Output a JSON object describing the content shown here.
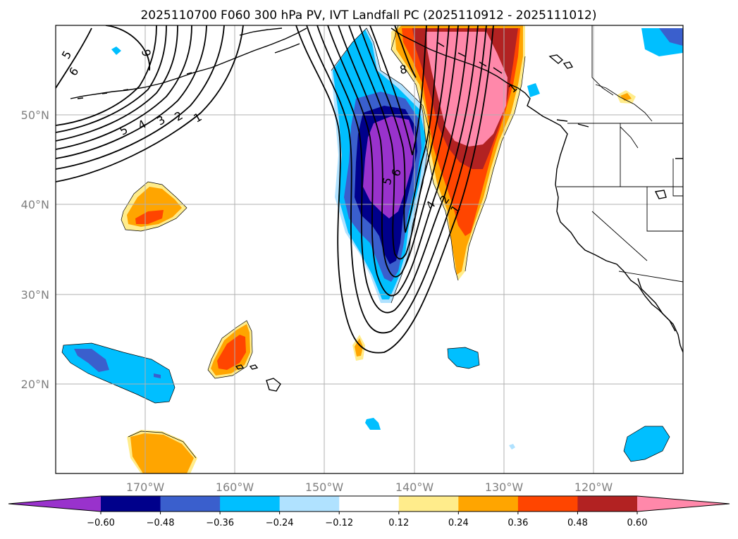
{
  "title": "2025110700 F060 300 hPa PV, IVT Landfall PC (2025110912 - 2025111012)",
  "axes": {
    "lat_ticks": [
      "50°N",
      "40°N",
      "30°N",
      "20°N"
    ],
    "lon_ticks": [
      "170°W",
      "160°W",
      "150°W",
      "140°W",
      "130°W",
      "120°W"
    ],
    "lat_range": [
      10,
      60
    ],
    "lon_range": [
      -180,
      -110
    ],
    "grid": true
  },
  "colorbar": {
    "tick_labels": [
      "−0.60",
      "−0.48",
      "−0.36",
      "−0.24",
      "−0.12",
      "0.12",
      "0.24",
      "0.36",
      "0.48",
      "0.60"
    ],
    "colors": [
      "#9932CC",
      "#00008B",
      "#3A5FCD",
      "#00BFFF",
      "#B0E2FF",
      "#FFFFFF",
      "#FFEC8B",
      "#FFA500",
      "#FF4500",
      "#B22222",
      "#FF88AA"
    ],
    "extend": "both"
  },
  "contour_labels": [
    "5",
    "6",
    "9",
    "5",
    "4",
    "3",
    "2",
    "1",
    "8",
    "5",
    "6",
    "4",
    "2",
    "1",
    "1"
  ]
}
